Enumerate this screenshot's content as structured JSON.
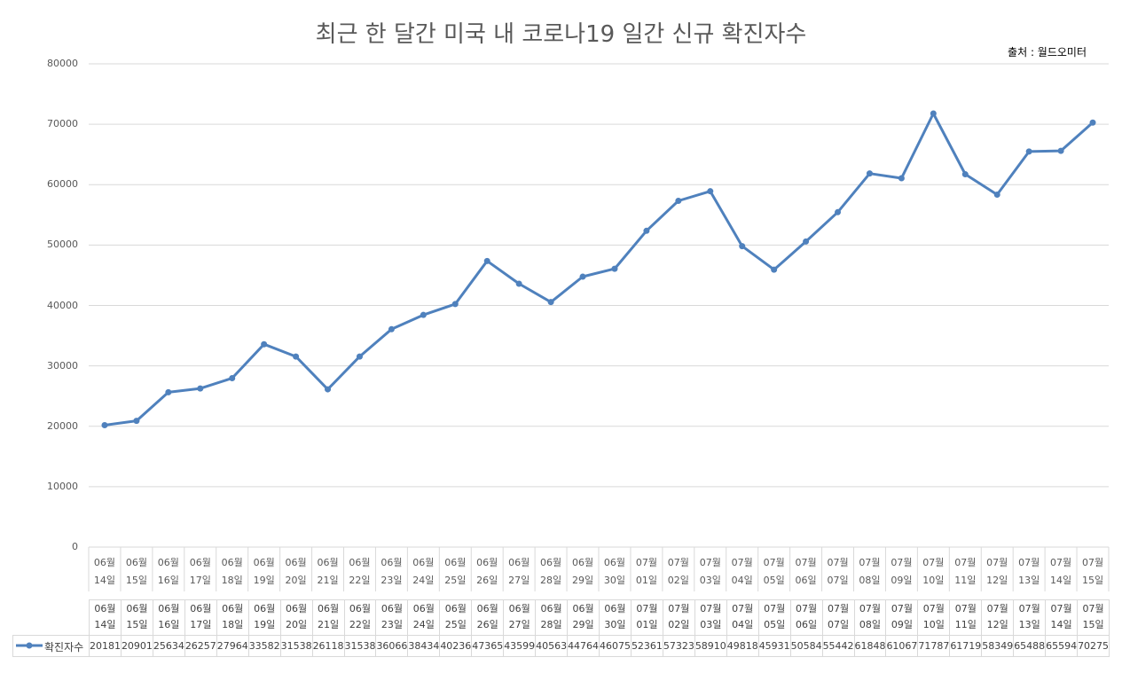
{
  "chart_data": {
    "type": "line",
    "title": "최근 한 달간 미국 내 코로나19 일간 신규 확진자수",
    "annotation": "출처 : 월드오미터",
    "categories": [
      "06월\n14일",
      "06월\n15일",
      "06월\n16일",
      "06월\n17일",
      "06월\n18일",
      "06월\n19일",
      "06월\n20일",
      "06월\n21일",
      "06월\n22일",
      "06월\n23일",
      "06월\n24일",
      "06월\n25일",
      "06월\n26일",
      "06월\n27일",
      "06월\n28일",
      "06월\n29일",
      "06월\n30일",
      "07월\n01일",
      "07월\n02일",
      "07월\n03일",
      "07월\n04일",
      "07월\n05일",
      "07월\n06일",
      "07월\n07일",
      "07월\n08일",
      "07월\n09일",
      "07월\n10일",
      "07월\n11일",
      "07월\n12일",
      "07월\n13일",
      "07월\n14일",
      "07월\n15일"
    ],
    "series": [
      {
        "name": "확진자수",
        "color": "#4f81bd",
        "values": [
          20181,
          20901,
          25634,
          26257,
          27964,
          33582,
          31538,
          26118,
          31538,
          36066,
          38434,
          40236,
          47365,
          43599,
          40563,
          44764,
          46075,
          52361,
          57323,
          58910,
          49818,
          45931,
          50584,
          55442,
          61848,
          61067,
          71787,
          61719,
          58349,
          65488,
          65594,
          70275
        ]
      }
    ],
    "ylim": [
      0,
      80000
    ],
    "yticks": [
      0,
      10000,
      20000,
      30000,
      40000,
      50000,
      60000,
      70000,
      80000
    ],
    "grid": true
  }
}
